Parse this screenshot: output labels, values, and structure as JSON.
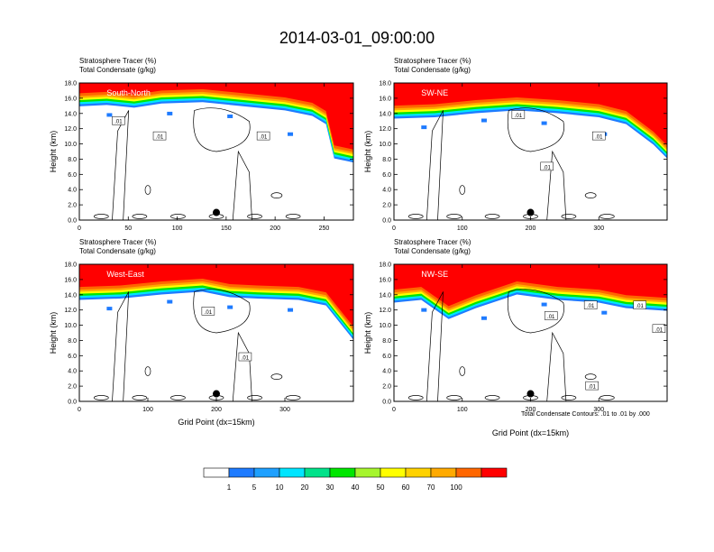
{
  "page_title": "2014-03-01_09:00:00",
  "footnote": "Total Condensate Contours: .01 to .01 by .000",
  "colors": {
    "levels": [
      "#ffffff",
      "#1e7bff",
      "#1ea0ff",
      "#00e5ff",
      "#00e28a",
      "#00e600",
      "#a6f52d",
      "#ffff00",
      "#ffd200",
      "#ffaa00",
      "#ff6600",
      "#ff0000"
    ],
    "contour": "#000000"
  },
  "colorbar": {
    "labels": [
      "1",
      "5",
      "10",
      "20",
      "30",
      "40",
      "50",
      "60",
      "70",
      "100"
    ]
  },
  "chart_data": [
    {
      "type": "heatmap",
      "panel": "top-left",
      "title_line1": "Stratosphere Tracer   (%)",
      "title_line2": "Total Condensate   (g/kg)",
      "cross_section": "South-North",
      "ylabel": "Height (km)",
      "xlabel": "",
      "xlim": [
        0,
        280
      ],
      "ylim": [
        0,
        18
      ],
      "xticks": [
        "0",
        "50",
        "100",
        "150",
        "200",
        "250"
      ],
      "xtick_values": [
        0,
        50,
        100,
        150,
        200,
        250
      ],
      "yticks": [
        "0.0",
        "2.0",
        "4.0",
        "6.0",
        "8.0",
        "10.0",
        "12.0",
        "14.0",
        "16.0",
        "18.0"
      ],
      "contour_labels": [
        {
          "text": ".01",
          "x": 40,
          "y": 13
        },
        {
          "text": ".01",
          "x": 82,
          "y": 11
        },
        {
          "text": ".01",
          "x": 188,
          "y": 11
        }
      ],
      "marker": {
        "x": 140,
        "y": 1.0
      }
    },
    {
      "type": "heatmap",
      "panel": "top-right",
      "title_line1": "Stratosphere Tracer   (%)",
      "title_line2": "Total Condensate   (g/kg)",
      "cross_section": "SW-NE",
      "ylabel": "Height (km)",
      "xlabel": "",
      "xlim": [
        0,
        400
      ],
      "ylim": [
        0,
        18
      ],
      "xticks": [
        "0",
        "100",
        "200",
        "300"
      ],
      "xtick_values": [
        0,
        100,
        200,
        300
      ],
      "yticks": [
        "0.0",
        "2.0",
        "4.0",
        "6.0",
        "8.0",
        "10.0",
        "12.0",
        "14.0",
        "16.0",
        "18.0"
      ],
      "contour_labels": [
        {
          "text": ".01",
          "x": 182,
          "y": 13.8
        },
        {
          "text": ".01",
          "x": 224,
          "y": 7
        },
        {
          "text": ".01",
          "x": 300,
          "y": 11
        }
      ],
      "marker": {
        "x": 200,
        "y": 1.0
      }
    },
    {
      "type": "heatmap",
      "panel": "bottom-left",
      "title_line1": "Stratosphere Tracer   (%)",
      "title_line2": "Total Condensate   (g/kg)",
      "cross_section": "West-East",
      "ylabel": "Height (km)",
      "xlabel": "Grid Point (dx=15km)",
      "xlim": [
        0,
        400
      ],
      "ylim": [
        0,
        18
      ],
      "xticks": [
        "0",
        "100",
        "200",
        "300"
      ],
      "xtick_values": [
        0,
        100,
        200,
        300
      ],
      "yticks": [
        "0.0",
        "2.0",
        "4.0",
        "6.0",
        "8.0",
        "10.0",
        "12.0",
        "14.0",
        "16.0",
        "18.0"
      ],
      "contour_labels": [
        {
          "text": ".01",
          "x": 188,
          "y": 11.8
        },
        {
          "text": ".01",
          "x": 242,
          "y": 5.8
        }
      ],
      "marker": {
        "x": 200,
        "y": 1.0
      }
    },
    {
      "type": "heatmap",
      "panel": "bottom-right",
      "title_line1": "Stratosphere Tracer   (%)",
      "title_line2": "Total Condensate   (g/kg)",
      "cross_section": "NW-SE",
      "ylabel": "Height (km)",
      "xlabel": "Grid Point (dx=15km)",
      "xlim": [
        0,
        400
      ],
      "ylim": [
        0,
        18
      ],
      "xticks": [
        "0",
        "100",
        "200",
        "300"
      ],
      "xtick_values": [
        0,
        100,
        200,
        300
      ],
      "yticks": [
        "0.0",
        "2.0",
        "4.0",
        "6.0",
        "8.0",
        "10.0",
        "12.0",
        "14.0",
        "16.0",
        "18.0"
      ],
      "contour_labels": [
        {
          "text": ".01",
          "x": 230,
          "y": 11.2
        },
        {
          "text": ".01",
          "x": 288,
          "y": 12.6
        },
        {
          "text": ".01",
          "x": 360,
          "y": 12.6
        },
        {
          "text": ".01",
          "x": 388,
          "y": 9.5
        },
        {
          "text": ".01",
          "x": 290,
          "y": 2
        }
      ],
      "marker": {
        "x": 200,
        "y": 1.0
      }
    }
  ]
}
